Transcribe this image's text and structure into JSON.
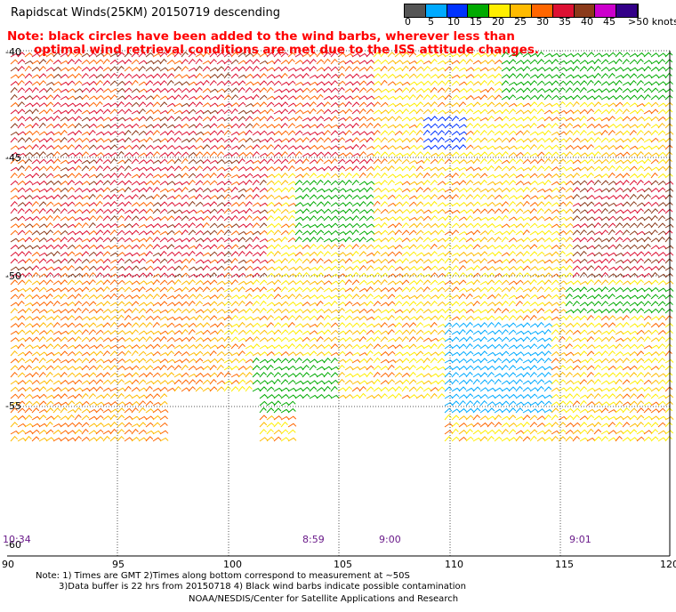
{
  "title": "Rapidscat Winds(25KM) 20150719 descending",
  "note_lines": [
    "Note: black circles have been added to the wind barbs, wherever less than",
    "optimal wind retrieval conditions are met due to the ISS attitude changes."
  ],
  "legend": {
    "labels": [
      "0",
      "5",
      "10",
      "15",
      "20",
      "25",
      "30",
      "35",
      "40",
      "45",
      ">50 knots"
    ],
    "colors": [
      "#555555",
      "#00aaff",
      "#0033ff",
      "#00aa00",
      "#ffee00",
      "#ffbb00",
      "#ff6600",
      "#dd1133",
      "#8b3a1a",
      "#cc00cc",
      "#330088"
    ]
  },
  "lat_labels": [
    "-40",
    "-45",
    "-50",
    "-55",
    "-60"
  ],
  "lon_labels": [
    "90",
    "95",
    "100",
    "105",
    "110",
    "115",
    "120"
  ],
  "time_labels": [
    "10:34",
    "8:59",
    "9:00",
    "9:01"
  ],
  "footer": {
    "line1": "Note: 1) Times are GMT 2)Times along bottom correspond to measurement at ~50S",
    "line2": "3)Data buffer is 22 hrs from 20150718 4) Black wind barbs indicate possible contamination",
    "credit": "NOAA/NESDIS/Center for Satellite Applications and Research"
  }
}
